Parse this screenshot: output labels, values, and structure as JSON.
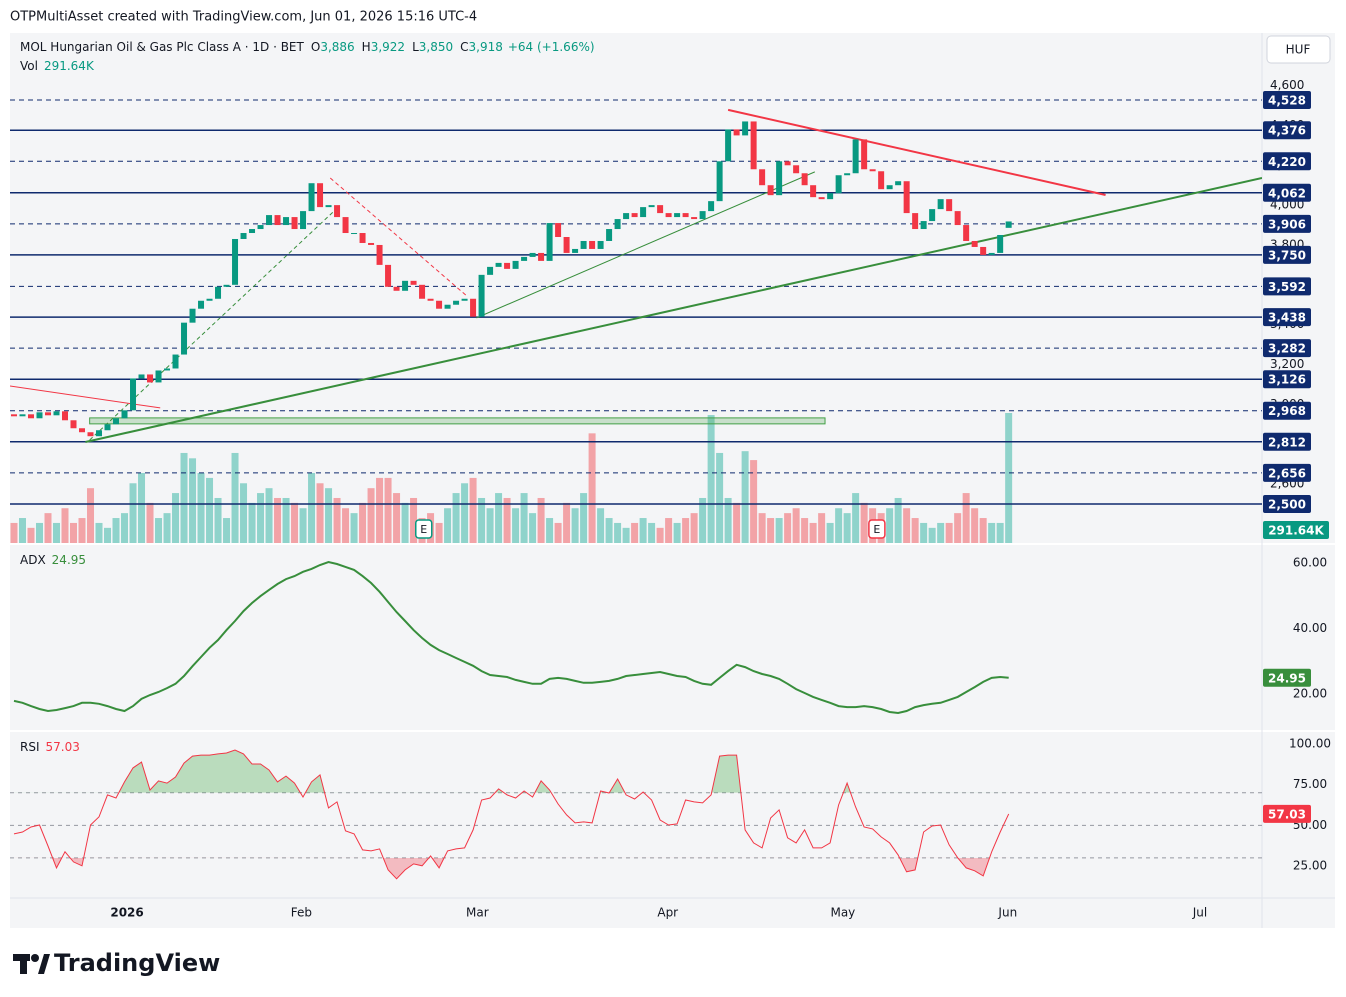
{
  "header": {
    "credit": "OTPMultiAsset created with TradingView.com, Jun 01, 2026 15:16 UTC-4"
  },
  "footer": {
    "logo": "TradingView"
  },
  "chart_data": [
    {
      "type": "candlestick",
      "title": "MOL Hungarian Oil & Gas Plc Class A · 1D · BET",
      "ohlc_legend": [
        {
          "key": "O",
          "value": "3,886"
        },
        {
          "key": "H",
          "value": "3,922"
        },
        {
          "key": "L",
          "value": "3,850"
        },
        {
          "key": "C",
          "value": "3,918"
        }
      ],
      "change": "+64 (+1.66%)",
      "currency": "HUF",
      "xlim": [
        -0.47,
        146.8
      ],
      "xticks": [
        {
          "value": 13.3,
          "label": "2026",
          "bold": true
        },
        {
          "value": 33.8,
          "label": "Feb"
        },
        {
          "value": 54.5,
          "label": "Mar"
        },
        {
          "value": 76.9,
          "label": "Apr"
        },
        {
          "value": 97.5,
          "label": "May"
        },
        {
          "value": 116.9,
          "label": "Jun"
        },
        {
          "value": 139.5,
          "label": "Jul"
        }
      ],
      "ylim": [
        2304,
        4864
      ],
      "yticks": [
        {
          "value": 4600,
          "label": "4,600"
        },
        {
          "value": 4400,
          "label": "4,400"
        },
        {
          "value": 4200,
          "label": "4,200"
        },
        {
          "value": 4000,
          "label": "4,000"
        },
        {
          "value": 3800,
          "label": "3,800"
        },
        {
          "value": 3600,
          "label": "3,600"
        },
        {
          "value": 3400,
          "label": "3,400"
        },
        {
          "value": 3200,
          "label": "3,200"
        },
        {
          "value": 3000,
          "label": "3,000"
        },
        {
          "value": 2800,
          "label": "2,800"
        },
        {
          "value": 2600,
          "label": "2,600"
        }
      ],
      "colors": {
        "up": "#089981",
        "down": "#f23645"
      },
      "open": [
        2950,
        2940,
        2950,
        2930,
        2960,
        2945,
        2965,
        2920,
        2880,
        2860,
        2840,
        2870,
        2900,
        2930,
        2970,
        3130,
        3150,
        3110,
        3170,
        3180,
        3250,
        3410,
        3480,
        3520,
        3530,
        3590,
        3600,
        3830,
        3860,
        3880,
        3900,
        3950,
        3900,
        3940,
        3880,
        3970,
        4110,
        3990,
        4000,
        3940,
        3860,
        3860,
        3810,
        3800,
        3700,
        3590,
        3570,
        3620,
        3600,
        3530,
        3520,
        3480,
        3500,
        3520,
        3530,
        3440,
        3650,
        3690,
        3710,
        3680,
        3720,
        3740,
        3760,
        3720,
        3910,
        3840,
        3760,
        3780,
        3820,
        3780,
        3820,
        3880,
        3930,
        3960,
        3940,
        3990,
        4000,
        3960,
        3940,
        3960,
        3940,
        3930,
        3970,
        4020,
        4220,
        4380,
        4350,
        4420,
        4180,
        4100,
        4050,
        4220,
        4200,
        4160,
        4100,
        4040,
        4030,
        4060,
        4150,
        4160,
        4330,
        4180,
        4170,
        4080,
        4100,
        4120,
        3960,
        3880,
        3920,
        3980,
        4030,
        3970,
        3900,
        3820,
        3790,
        3750,
        3760,
        3886
      ],
      "close": [
        2940,
        2950,
        2930,
        2960,
        2945,
        2965,
        2920,
        2880,
        2860,
        2840,
        2870,
        2900,
        2930,
        2970,
        3130,
        3150,
        3110,
        3170,
        3180,
        3250,
        3410,
        3480,
        3520,
        3530,
        3590,
        3600,
        3830,
        3860,
        3880,
        3900,
        3950,
        3900,
        3940,
        3880,
        3970,
        4110,
        3990,
        4000,
        3940,
        3860,
        3860,
        3810,
        3800,
        3700,
        3590,
        3570,
        3620,
        3600,
        3530,
        3520,
        3480,
        3500,
        3520,
        3530,
        3440,
        3650,
        3690,
        3710,
        3680,
        3720,
        3740,
        3760,
        3720,
        3910,
        3840,
        3760,
        3780,
        3820,
        3780,
        3820,
        3880,
        3930,
        3960,
        3940,
        3990,
        4000,
        3960,
        3940,
        3960,
        3940,
        3930,
        3970,
        4020,
        4220,
        4380,
        4350,
        4420,
        4180,
        4100,
        4050,
        4220,
        4200,
        4160,
        4100,
        4040,
        4030,
        4060,
        4150,
        4160,
        4330,
        4180,
        4170,
        4080,
        4100,
        4120,
        3960,
        3880,
        3920,
        3980,
        4030,
        3970,
        3900,
        3820,
        3790,
        3750,
        3760,
        3850,
        3918
      ],
      "volume": {
        "name": "Vol",
        "value_label": "291.64K",
        "ylim": [
          0,
          1144.1
        ],
        "colors": {
          "up": "#8fd3cb",
          "down": "#f2a3a7"
        },
        "values": [
          45,
          56,
          34,
          45,
          67,
          45,
          78,
          45,
          56,
          123,
          45,
          34,
          56,
          67,
          134,
          157,
          90,
          56,
          67,
          112,
          202,
          190,
          157,
          146,
          101,
          56,
          202,
          134,
          90,
          112,
          123,
          101,
          101,
          90,
          78,
          157,
          134,
          123,
          101,
          78,
          67,
          90,
          123,
          146,
          146,
          112,
          90,
          101,
          56,
          67,
          45,
          78,
          112,
          134,
          146,
          101,
          78,
          112,
          101,
          78,
          112,
          67,
          101,
          56,
          45,
          90,
          78,
          112,
          246,
          78,
          56,
          45,
          34,
          45,
          56,
          45,
          34,
          56,
          45,
          56,
          67,
          101,
          287,
          202,
          101,
          90,
          206,
          186,
          67,
          56,
          56,
          67,
          78,
          56,
          45,
          67,
          45,
          78,
          67,
          112,
          90,
          78,
          67,
          78,
          101,
          78,
          56,
          45,
          34,
          45,
          45,
          67,
          112,
          78,
          56,
          45,
          45,
          291.64
        ]
      },
      "level_color": "#0f2a6e",
      "levels": [
        {
          "value": 4528,
          "label": "4,528",
          "style": "dashed"
        },
        {
          "value": 4376,
          "label": "4,376",
          "style": "solid"
        },
        {
          "value": 4220,
          "label": "4,220",
          "style": "dashed"
        },
        {
          "value": 4062,
          "label": "4,062",
          "style": "solid"
        },
        {
          "value": 3906,
          "label": "3,906",
          "style": "dashed"
        },
        {
          "value": 3750,
          "label": "3,750",
          "style": "solid"
        },
        {
          "value": 3592,
          "label": "3,592",
          "style": "dashed"
        },
        {
          "value": 3438,
          "label": "3,438",
          "style": "solid"
        },
        {
          "value": 3282,
          "label": "3,282",
          "style": "dashed"
        },
        {
          "value": 3126,
          "label": "3,126",
          "style": "solid"
        },
        {
          "value": 2968,
          "label": "2,968",
          "style": "dashed"
        },
        {
          "value": 2812,
          "label": "2,812",
          "style": "solid"
        },
        {
          "value": 2656,
          "label": "2,656",
          "style": "dashed"
        },
        {
          "value": 2500,
          "label": "2,500",
          "style": "solid"
        }
      ],
      "drawings": [
        {
          "shape": "rect",
          "color": "#43a047",
          "points": [
            [
              8.9,
              2932
            ],
            [
              95.4,
              2902
            ]
          ]
        },
        {
          "shape": "line",
          "color": "#388e3c",
          "width": 2,
          "style": "solid",
          "points": [
            [
              8.4,
              2811
            ],
            [
              146.8,
              4136
            ]
          ]
        },
        {
          "shape": "line",
          "color": "#388e3c",
          "width": 1,
          "style": "solid",
          "points": [
            [
              54.4,
              3434
            ],
            [
              94.2,
              4167
            ]
          ]
        },
        {
          "shape": "line",
          "color": "#f23645",
          "width": 2,
          "style": "solid",
          "points": [
            [
              84,
              4478
            ],
            [
              128.4,
              4051
            ]
          ]
        },
        {
          "shape": "line",
          "color": "#f23645",
          "width": 1,
          "style": "dashed",
          "points": [
            [
              37.2,
              4136
            ],
            [
              53.4,
              3539
            ]
          ]
        },
        {
          "shape": "line",
          "color": "#388e3c",
          "width": 1,
          "style": "dashed",
          "points": [
            [
              8.9,
              2821
            ],
            [
              37.8,
              3976
            ]
          ]
        },
        {
          "shape": "line",
          "color": "#f23645",
          "width": 1,
          "style": "solid",
          "points": [
            [
              -0.47,
              3092
            ],
            [
              17.2,
              2982
            ]
          ]
        }
      ],
      "events": [
        {
          "x": 48.2,
          "label": "E"
        },
        {
          "x": 101.5,
          "label": "E"
        }
      ]
    },
    {
      "type": "line",
      "name": "ADX",
      "color": "#388e3c",
      "ylim": [
        9,
        65.5
      ],
      "yticks": [
        {
          "value": 60,
          "label": "60.00"
        },
        {
          "value": 40,
          "label": "40.00"
        },
        {
          "value": 20,
          "label": "20.00"
        }
      ],
      "values": [
        17.9,
        17.3,
        16.3,
        15.4,
        14.8,
        15.1,
        15.7,
        16.3,
        17.3,
        17.3,
        17.0,
        16.3,
        15.4,
        14.8,
        16.3,
        18.5,
        19.7,
        20.6,
        21.8,
        23.1,
        25.5,
        28.5,
        31.3,
        34.1,
        36.5,
        39.5,
        42.3,
        45.3,
        47.8,
        49.9,
        51.8,
        53.6,
        55.1,
        56.0,
        57.3,
        58.2,
        59.4,
        60.3,
        59.7,
        58.8,
        57.9,
        56.0,
        53.9,
        51.2,
        48.1,
        45.0,
        42.3,
        39.5,
        37.1,
        35.0,
        33.4,
        32.2,
        31.0,
        29.8,
        28.6,
        27.0,
        25.8,
        25.5,
        25.2,
        24.3,
        23.7,
        23.1,
        23.1,
        24.6,
        24.9,
        24.6,
        24.0,
        23.4,
        23.4,
        23.7,
        24.0,
        24.6,
        25.5,
        25.8,
        26.1,
        26.4,
        26.7,
        26.1,
        25.5,
        25.2,
        24.0,
        23.1,
        22.8,
        24.9,
        27.0,
        28.9,
        28.2,
        27.0,
        26.1,
        25.5,
        24.6,
        23.1,
        21.5,
        20.3,
        19.1,
        18.2,
        17.3,
        16.3,
        16.0,
        16.0,
        16.3,
        16.0,
        15.4,
        14.5,
        14.2,
        14.8,
        16.0,
        16.6,
        17.0,
        17.3,
        18.2,
        19.1,
        20.6,
        22.1,
        23.7,
        24.9,
        25.2,
        24.95
      ]
    },
    {
      "type": "line",
      "name": "RSI",
      "color": "#f23645",
      "ylim": [
        5.3,
        107.4
      ],
      "yticks": [
        {
          "value": 100,
          "label": "100.00"
        },
        {
          "value": 75,
          "label": "75.00"
        },
        {
          "value": 50,
          "label": "50.00"
        },
        {
          "value": 25,
          "label": "25.00"
        }
      ],
      "bands": [
        70,
        50,
        30
      ],
      "band_fill": {
        "above": "#4caf50",
        "below": "#f23645"
      },
      "values": [
        44.7,
        45.9,
        49.0,
        50.2,
        37.3,
        23.8,
        33.7,
        27.5,
        25.1,
        50.2,
        55.2,
        68.7,
        66.8,
        76.7,
        85.3,
        88.9,
        71.7,
        77.3,
        76.0,
        79.7,
        88.3,
        92.6,
        93.2,
        93.2,
        93.9,
        94.5,
        96.3,
        93.9,
        87.7,
        87.7,
        84.0,
        76.7,
        80.3,
        76.0,
        67.4,
        76.7,
        81.0,
        60.7,
        64.4,
        46.6,
        44.7,
        34.9,
        34.3,
        35.5,
        22.6,
        17.1,
        22.6,
        26.3,
        25.1,
        31.2,
        23.8,
        34.3,
        35.5,
        36.1,
        47.2,
        65.6,
        66.8,
        72.4,
        68.7,
        66.8,
        71.1,
        67.4,
        77.3,
        71.7,
        63.1,
        56.4,
        51.5,
        52.1,
        51.5,
        71.1,
        69.9,
        78.5,
        68.7,
        66.2,
        70.5,
        65.6,
        53.3,
        50.2,
        50.9,
        65.6,
        64.4,
        63.8,
        68.7,
        92.6,
        93.2,
        93.2,
        47.2,
        39.2,
        36.1,
        54.5,
        59.5,
        42.3,
        39.2,
        47.2,
        36.1,
        36.1,
        39.2,
        62.5,
        76.0,
        61.3,
        49.0,
        47.8,
        42.9,
        39.2,
        31.8,
        21.4,
        22.6,
        45.9,
        49.6,
        50.2,
        38.0,
        30.0,
        23.8,
        22.0,
        18.9,
        33.7,
        45.9,
        57.03
      ]
    }
  ]
}
